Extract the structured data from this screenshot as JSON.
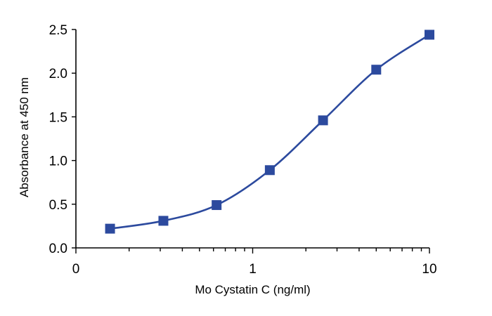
{
  "chart_data": {
    "type": "scatter",
    "title": "",
    "xlabel": "Mo Cystatin C (ng/ml)",
    "ylabel": "Absorbance at 450 nm",
    "x_scale": "log",
    "xlim": [
      0.1,
      10
    ],
    "ylim": [
      0,
      2.5
    ],
    "x_tick_labels": [
      {
        "value": 0.1,
        "label": "0"
      },
      {
        "value": 1,
        "label": "1"
      },
      {
        "value": 10,
        "label": "10"
      }
    ],
    "y_ticks": [
      0.0,
      0.5,
      1.0,
      1.5,
      2.0,
      2.5
    ],
    "y_tick_labels": [
      "0.0",
      "0.5",
      "1.0",
      "1.5",
      "2.0",
      "2.5"
    ],
    "grid": false,
    "series": [
      {
        "points": [
          {
            "x": 0.156,
            "y": 0.22
          },
          {
            "x": 0.3125,
            "y": 0.31
          },
          {
            "x": 0.625,
            "y": 0.49
          },
          {
            "x": 1.25,
            "y": 0.89
          },
          {
            "x": 2.5,
            "y": 1.46
          },
          {
            "x": 5,
            "y": 2.04
          },
          {
            "x": 10,
            "y": 2.44
          }
        ],
        "marker": "square",
        "fit": "4PL curve"
      }
    ],
    "colors": {
      "series": "#2c4a9e",
      "axis": "#000000"
    }
  }
}
